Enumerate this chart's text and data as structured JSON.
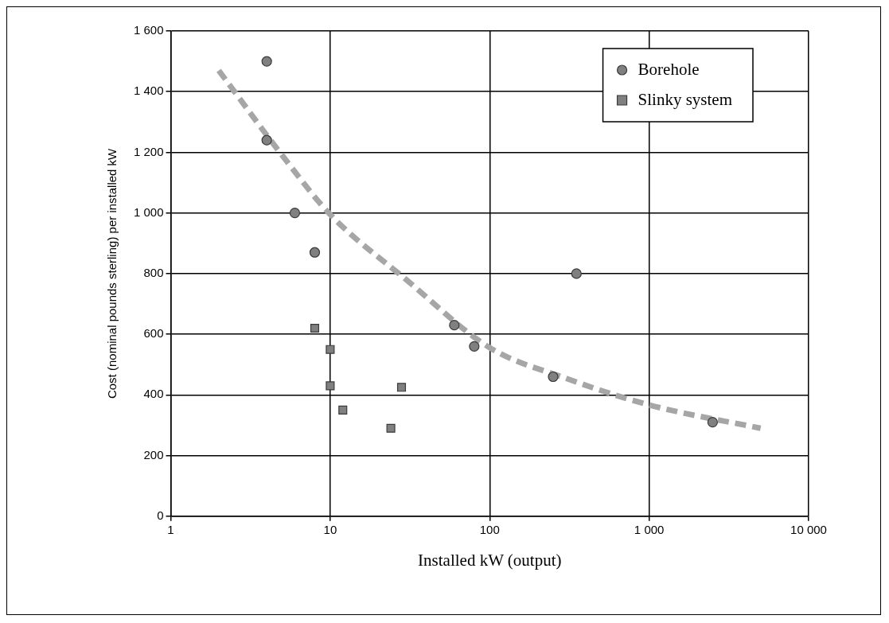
{
  "chart_data": {
    "type": "scatter",
    "xlabel": "Installed kW (output)",
    "ylabel": "Cost (nominal pounds sterling) per installed kW",
    "log": "x",
    "xlim": [
      1,
      10000
    ],
    "xticks": [
      1,
      10,
      100,
      {
        "value": 1000,
        "label": "1 000"
      },
      {
        "value": 10000,
        "label": "10 000"
      }
    ],
    "ylim": [
      0,
      1600
    ],
    "yticks": [
      0,
      200,
      400,
      600,
      800,
      {
        "value": 1000,
        "label": "1 000"
      },
      {
        "value": 1200,
        "label": "1 200"
      },
      {
        "value": 1400,
        "label": "1 400"
      },
      {
        "value": 1600,
        "label": "1 600"
      }
    ],
    "grid": true,
    "legend": "top right",
    "series": [
      {
        "name": "Borehole",
        "color": "#808080",
        "marker": "circle",
        "x": [
          4,
          4,
          6,
          8,
          60,
          80,
          250,
          350,
          2500
        ],
        "values": [
          1500,
          1240,
          1000,
          870,
          630,
          560,
          460,
          800,
          310
        ]
      },
      {
        "name": "Slinky system",
        "color": "#808080",
        "marker": "square",
        "x": [
          8,
          10,
          10,
          12,
          24,
          28
        ],
        "values": [
          620,
          550,
          430,
          350,
          290,
          425
        ]
      },
      {
        "type": "line",
        "color": "#a6a6a6",
        "marker": "none",
        "line_style": "dashed",
        "x": [
          2,
          5,
          10,
          30,
          100,
          300,
          1000,
          5000
        ],
        "values": [
          1470,
          1190,
          995,
          780,
          556,
          455,
          367,
          290
        ]
      }
    ]
  }
}
